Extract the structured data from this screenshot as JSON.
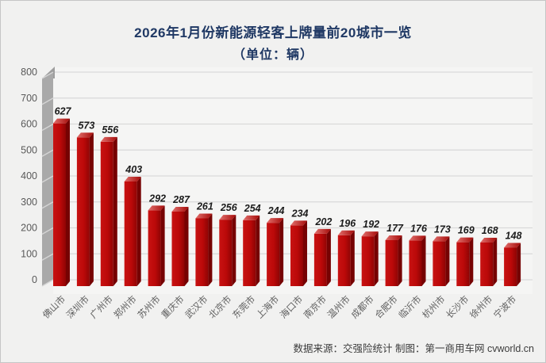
{
  "title": {
    "line1": "2026年1月份新能源轻客上牌量前20城市一览",
    "line2": "（单位：辆）"
  },
  "source_note": "数据来源：交强险统计 制图：第一商用车网 cvworld.cn",
  "chart_data": {
    "type": "bar",
    "style": "3d-column",
    "title": "2026年1月份新能源轻客上牌量前20城市一览",
    "subtitle": "（单位：辆）",
    "unit": "辆",
    "categories": [
      "佛山市",
      "深圳市",
      "广州市",
      "郑州市",
      "苏州市",
      "重庆市",
      "武汉市",
      "北京市",
      "东莞市",
      "上海市",
      "海口市",
      "南京市",
      "温州市",
      "成都市",
      "合肥市",
      "临沂市",
      "杭州市",
      "长沙市",
      "徐州市",
      "宁波市"
    ],
    "values": [
      627,
      573,
      556,
      403,
      292,
      287,
      261,
      256,
      254,
      244,
      234,
      202,
      196,
      192,
      177,
      176,
      173,
      169,
      168,
      148
    ],
    "xlabel": "",
    "ylabel": "",
    "ylim": [
      0,
      800
    ],
    "ytick_interval": 100,
    "yticks": [
      0,
      100,
      200,
      300,
      400,
      500,
      600,
      700,
      800
    ],
    "grid": true,
    "legend": false,
    "colors": {
      "bar_front": "#bb0909",
      "bar_front_light": "#c81212",
      "bar_front_dark": "#8e0404",
      "bar_side": "#760202",
      "bar_top_light": "#e2706d",
      "bar_top_dark": "#a50a08",
      "title_text": "#1f3864",
      "axis_text": "#595959",
      "category_text": "#5f5f5f",
      "value_label_text": "#1b1b1b",
      "wall": "#a9a9a9",
      "wall_cap": "#9e9e9e",
      "wall_cut": "#d5d5d5",
      "gridline": "#d9d9d9",
      "plot_bg": "#f5f5f4",
      "page_bg": "#f1f1f0"
    }
  }
}
